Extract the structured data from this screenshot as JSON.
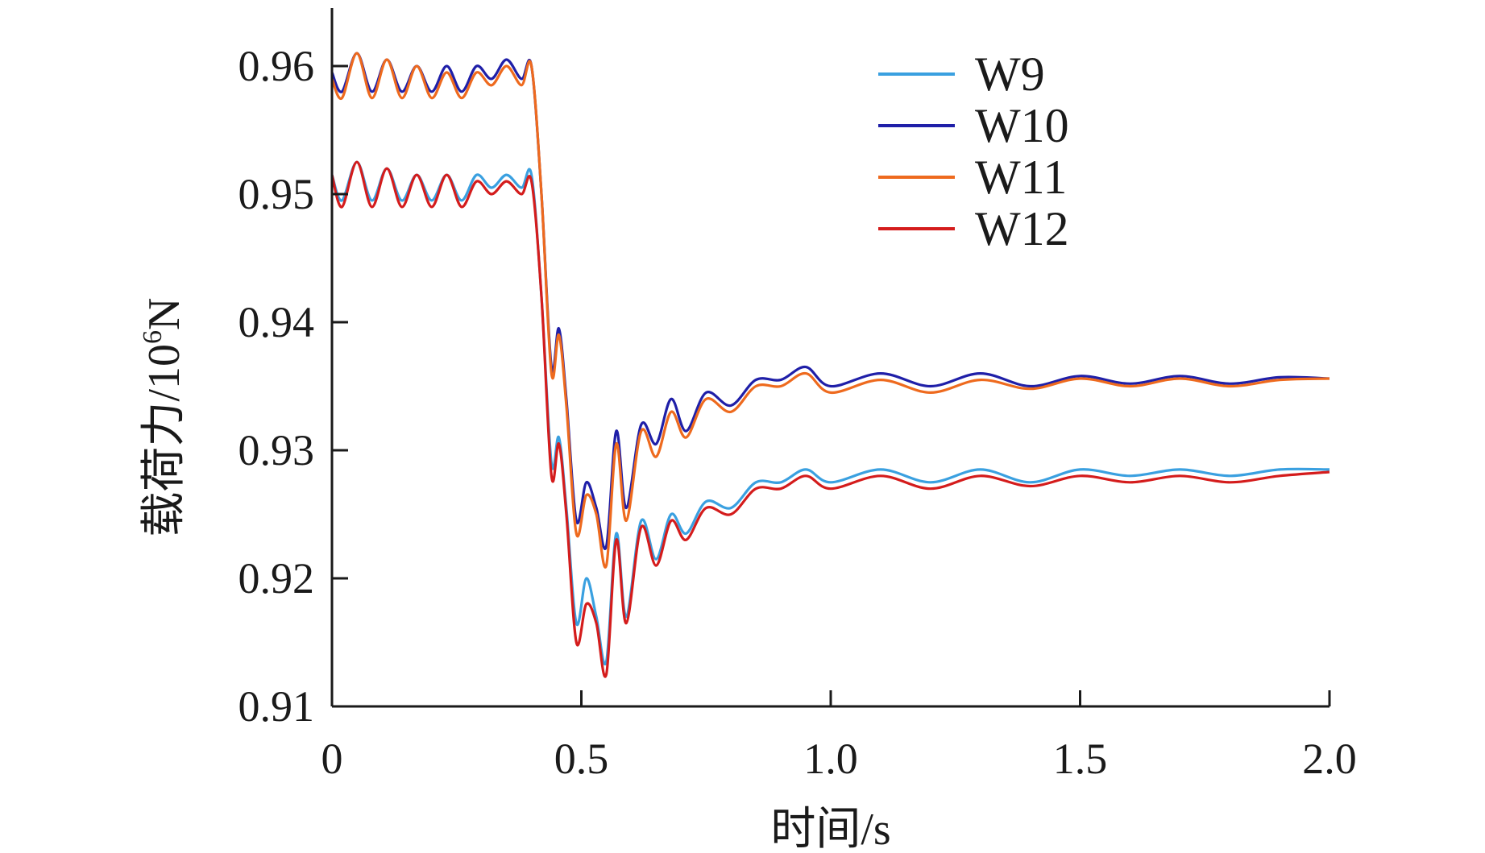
{
  "chart_data": {
    "type": "line",
    "title": "",
    "xlabel": "时间/s",
    "ylabel_prefix": "载荷力/10",
    "ylabel_sup": "6",
    "ylabel_suffix": "N",
    "xlim": [
      0,
      2.0
    ],
    "ylim": [
      0.91,
      0.96
    ],
    "xticks": [
      "0",
      "0.5",
      "1.0",
      "1.5",
      "2.0"
    ],
    "yticks": [
      "0.91",
      "0.92",
      "0.93",
      "0.94",
      "0.95",
      "0.96"
    ],
    "grid": false,
    "legend_position": "top-right",
    "series": [
      {
        "name": "W9",
        "color": "#3aa0e0",
        "x": [
          0,
          0.02,
          0.05,
          0.08,
          0.11,
          0.14,
          0.17,
          0.2,
          0.23,
          0.26,
          0.29,
          0.32,
          0.35,
          0.38,
          0.4,
          0.42,
          0.44,
          0.455,
          0.47,
          0.49,
          0.51,
          0.53,
          0.55,
          0.57,
          0.59,
          0.62,
          0.65,
          0.68,
          0.71,
          0.75,
          0.8,
          0.85,
          0.9,
          0.95,
          1.0,
          1.1,
          1.2,
          1.3,
          1.4,
          1.5,
          1.6,
          1.7,
          1.8,
          1.9,
          2.0
        ],
        "y": [
          0.9515,
          0.9495,
          0.9525,
          0.9495,
          0.952,
          0.9495,
          0.9515,
          0.9495,
          0.9515,
          0.9495,
          0.9515,
          0.9505,
          0.9515,
          0.9505,
          0.9515,
          0.942,
          0.929,
          0.931,
          0.9255,
          0.9165,
          0.92,
          0.917,
          0.9135,
          0.9235,
          0.917,
          0.9245,
          0.9215,
          0.925,
          0.9235,
          0.926,
          0.9255,
          0.9275,
          0.9275,
          0.9285,
          0.9275,
          0.9285,
          0.9275,
          0.9285,
          0.9275,
          0.9285,
          0.928,
          0.9285,
          0.928,
          0.9285,
          0.9285
        ]
      },
      {
        "name": "W10",
        "color": "#1f1fa8",
        "x": [
          0,
          0.02,
          0.05,
          0.08,
          0.11,
          0.14,
          0.17,
          0.2,
          0.23,
          0.26,
          0.29,
          0.32,
          0.35,
          0.38,
          0.4,
          0.42,
          0.44,
          0.455,
          0.47,
          0.49,
          0.51,
          0.53,
          0.55,
          0.57,
          0.59,
          0.62,
          0.65,
          0.68,
          0.71,
          0.75,
          0.8,
          0.85,
          0.9,
          0.95,
          1.0,
          1.1,
          1.2,
          1.3,
          1.4,
          1.5,
          1.6,
          1.7,
          1.8,
          1.9,
          2.0
        ],
        "y": [
          0.9595,
          0.958,
          0.961,
          0.958,
          0.9605,
          0.958,
          0.96,
          0.958,
          0.96,
          0.958,
          0.96,
          0.959,
          0.9605,
          0.959,
          0.96,
          0.95,
          0.9365,
          0.9395,
          0.934,
          0.9245,
          0.9275,
          0.9255,
          0.9225,
          0.9315,
          0.9255,
          0.932,
          0.9305,
          0.934,
          0.9315,
          0.9345,
          0.9335,
          0.9355,
          0.9355,
          0.9365,
          0.935,
          0.936,
          0.935,
          0.936,
          0.935,
          0.9358,
          0.9352,
          0.9358,
          0.9352,
          0.9357,
          0.9356
        ]
      },
      {
        "name": "W11",
        "color": "#ee6a1e",
        "x": [
          0,
          0.02,
          0.05,
          0.08,
          0.11,
          0.14,
          0.17,
          0.2,
          0.23,
          0.26,
          0.29,
          0.32,
          0.35,
          0.38,
          0.4,
          0.42,
          0.44,
          0.455,
          0.47,
          0.49,
          0.51,
          0.53,
          0.55,
          0.57,
          0.59,
          0.62,
          0.65,
          0.68,
          0.71,
          0.75,
          0.8,
          0.85,
          0.9,
          0.95,
          1.0,
          1.1,
          1.2,
          1.3,
          1.4,
          1.5,
          1.6,
          1.7,
          1.8,
          1.9,
          2.0
        ],
        "y": [
          0.959,
          0.9575,
          0.961,
          0.9575,
          0.9605,
          0.9575,
          0.96,
          0.9575,
          0.9595,
          0.9575,
          0.9595,
          0.9585,
          0.96,
          0.9585,
          0.96,
          0.95,
          0.936,
          0.939,
          0.9335,
          0.9235,
          0.9265,
          0.925,
          0.921,
          0.9305,
          0.9245,
          0.9315,
          0.9295,
          0.933,
          0.931,
          0.934,
          0.933,
          0.935,
          0.935,
          0.936,
          0.9345,
          0.9355,
          0.9345,
          0.9355,
          0.9348,
          0.9356,
          0.935,
          0.9356,
          0.935,
          0.9355,
          0.9356
        ]
      },
      {
        "name": "W12",
        "color": "#d41c1c",
        "x": [
          0,
          0.02,
          0.05,
          0.08,
          0.11,
          0.14,
          0.17,
          0.2,
          0.23,
          0.26,
          0.29,
          0.32,
          0.35,
          0.38,
          0.4,
          0.42,
          0.44,
          0.455,
          0.47,
          0.49,
          0.51,
          0.53,
          0.55,
          0.57,
          0.59,
          0.62,
          0.65,
          0.68,
          0.71,
          0.75,
          0.8,
          0.85,
          0.9,
          0.95,
          1.0,
          1.1,
          1.2,
          1.3,
          1.4,
          1.5,
          1.6,
          1.7,
          1.8,
          1.9,
          2.0
        ],
        "y": [
          0.9515,
          0.949,
          0.9525,
          0.949,
          0.952,
          0.949,
          0.9515,
          0.949,
          0.9515,
          0.949,
          0.951,
          0.95,
          0.951,
          0.95,
          0.951,
          0.942,
          0.928,
          0.9305,
          0.925,
          0.915,
          0.918,
          0.9165,
          0.9125,
          0.923,
          0.9165,
          0.924,
          0.921,
          0.9245,
          0.923,
          0.9255,
          0.925,
          0.927,
          0.927,
          0.928,
          0.927,
          0.928,
          0.927,
          0.928,
          0.9272,
          0.928,
          0.9275,
          0.928,
          0.9275,
          0.928,
          0.9283
        ]
      }
    ]
  }
}
